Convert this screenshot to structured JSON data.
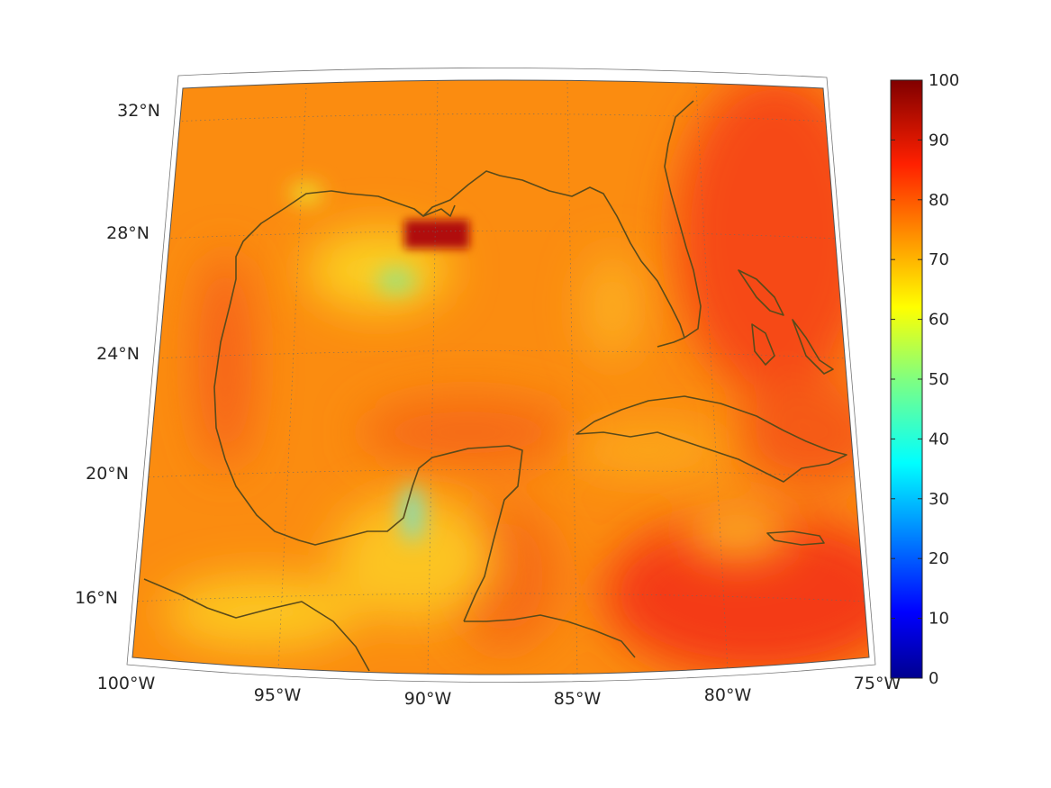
{
  "map": {
    "projection": "conic",
    "region": "Gulf of Mexico and Caribbean",
    "lon_range": [
      -100,
      -75
    ],
    "lat_range": [
      14,
      32
    ],
    "graticule": "dotted",
    "coast_color": "#5a4a1a"
  },
  "lat_labels": [
    {
      "lat": 32,
      "label": "32°N"
    },
    {
      "lat": 28,
      "label": "28°N"
    },
    {
      "lat": 24,
      "label": "24°N"
    },
    {
      "lat": 20,
      "label": "20°N"
    },
    {
      "lat": 16,
      "label": "16°N"
    }
  ],
  "lon_labels": [
    {
      "lon": -100,
      "label": "100°W"
    },
    {
      "lon": -95,
      "label": "95°W"
    },
    {
      "lon": -90,
      "label": "90°W"
    },
    {
      "lon": -85,
      "label": "85°W"
    },
    {
      "lon": -80,
      "label": "80°W"
    },
    {
      "lon": -75,
      "label": "75°W"
    }
  ],
  "colorbar": {
    "colormap": "jet",
    "min": 0,
    "max": 100,
    "ticks": [
      "0",
      "10",
      "20",
      "30",
      "40",
      "50",
      "60",
      "70",
      "80",
      "90",
      "100"
    ],
    "colors": [
      "#00008f",
      "#0000ff",
      "#0080ff",
      "#00ffff",
      "#80ff80",
      "#ffff00",
      "#ff8000",
      "#ff0000",
      "#800000"
    ]
  }
}
